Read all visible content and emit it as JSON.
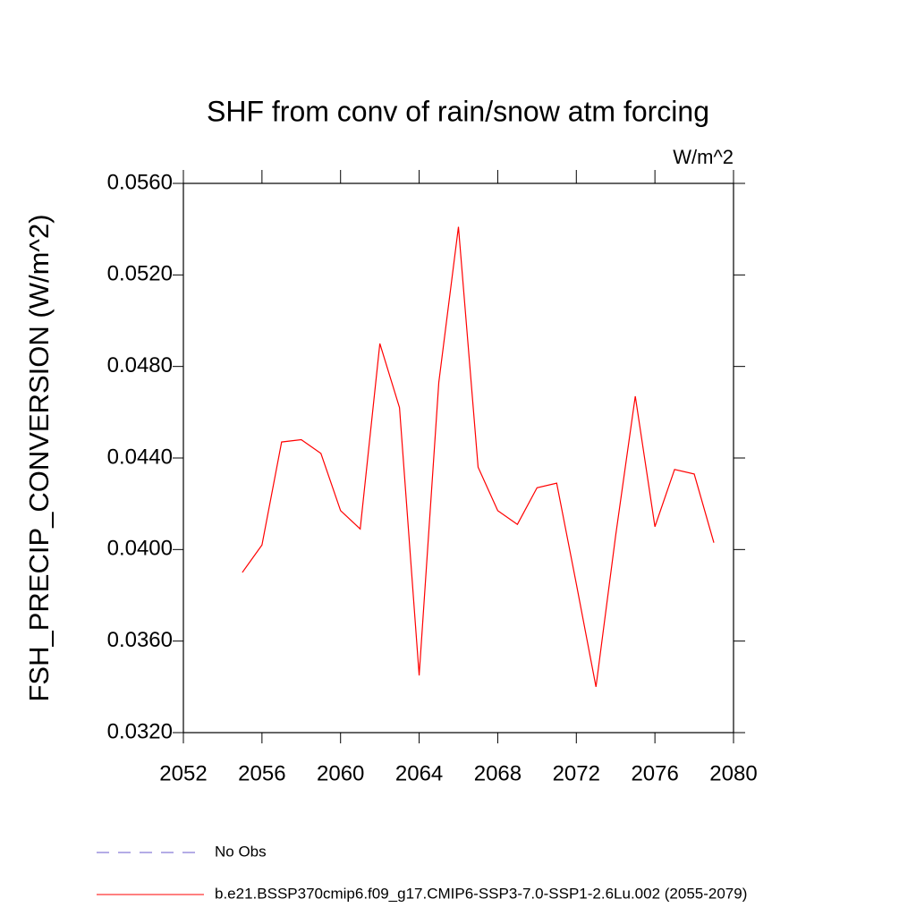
{
  "chart_data": {
    "type": "line",
    "title": "SHF from conv of rain/snow atm forcing",
    "units_note": "W/m^2",
    "y_label": "FSH_PRECIP_CONVERSION  (W/m^2)",
    "x": [
      2055,
      2056,
      2057,
      2058,
      2059,
      2060,
      2061,
      2062,
      2063,
      2064,
      2065,
      2066,
      2067,
      2068,
      2069,
      2070,
      2071,
      2072,
      2073,
      2074,
      2075,
      2076,
      2077,
      2078,
      2079
    ],
    "series": [
      {
        "name": "No Obs",
        "color": "#6a5acd",
        "dashed": true,
        "values": [
          null,
          null,
          null,
          null,
          null,
          null,
          null,
          null,
          null,
          null,
          null,
          null,
          null,
          null,
          null,
          null,
          null,
          null,
          null,
          null,
          null,
          null,
          null,
          null,
          null
        ]
      },
      {
        "name": "b.e21.BSSP370cmip6.f09_g17.CMIP6-SSP3-7.0-SSP1-2.6Lu.002 (2055-2079)",
        "color": "#ff0000",
        "dashed": false,
        "values": [
          0.039,
          0.0402,
          0.0447,
          0.0448,
          0.0442,
          0.0417,
          0.0409,
          0.049,
          0.0462,
          0.0345,
          0.0473,
          0.0541,
          0.0436,
          0.0417,
          0.0411,
          0.0427,
          0.0429,
          0.0385,
          0.034,
          0.0406,
          0.0467,
          0.041,
          0.0435,
          0.0433,
          0.0403
        ]
      }
    ],
    "xlim": [
      2052,
      2080
    ],
    "xticks": [
      2052,
      2056,
      2060,
      2064,
      2068,
      2072,
      2076,
      2080
    ],
    "ylim": [
      0.032,
      0.056
    ],
    "yticks": [
      {
        "value": 0.032,
        "label": "0.0320"
      },
      {
        "value": 0.036,
        "label": "0.0360"
      },
      {
        "value": 0.04,
        "label": "0.0400"
      },
      {
        "value": 0.044,
        "label": "0.0440"
      },
      {
        "value": 0.048,
        "label": "0.0480"
      },
      {
        "value": 0.052,
        "label": "0.0520"
      },
      {
        "value": 0.056,
        "label": "0.0560"
      }
    ],
    "grid": false
  }
}
